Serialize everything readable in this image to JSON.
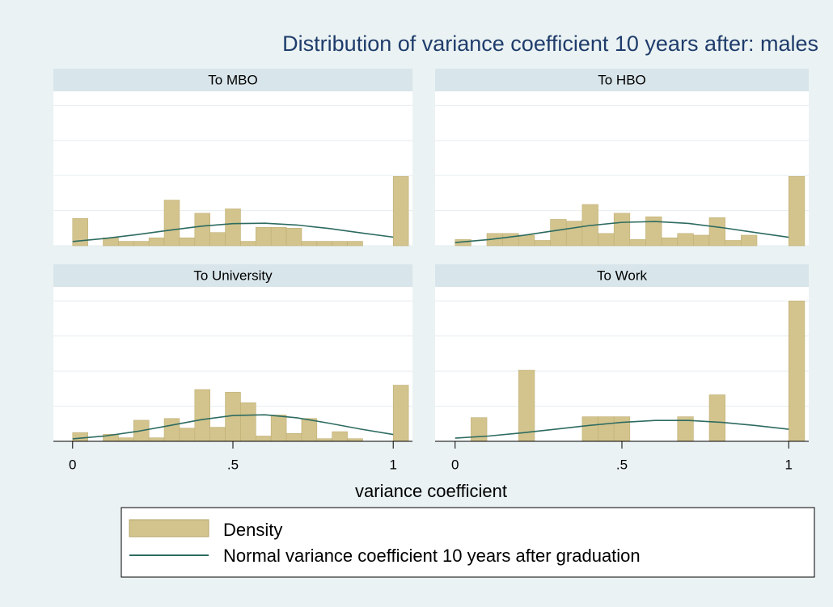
{
  "title": "Distribution of variance coefficient 10 years after: males",
  "xlabel": "variance coefficient",
  "legend": [
    {
      "name": "Density",
      "color": "#d3c48e"
    },
    {
      "name": "Normal variance coefficient 10 years after graduation",
      "color": "#2d6b60"
    }
  ],
  "chart_data": [
    {
      "type": "histogram",
      "title": "To MBO",
      "bins": [
        0,
        0.0476,
        0.0952,
        0.1429,
        0.1905,
        0.2381,
        0.2857,
        0.3333,
        0.381,
        0.4286,
        0.4762,
        0.5238,
        0.5714,
        0.619,
        0.6667,
        0.7143,
        0.7619,
        0.8095,
        0.8571,
        0.9048,
        0.9524,
        1,
        1.0476
      ],
      "counts": [
        1.55,
        0,
        0.45,
        0.25,
        0.25,
        0.45,
        2.6,
        0.45,
        1.85,
        0.75,
        2.1,
        0.25,
        1.05,
        1.05,
        1.0,
        0.25,
        0.25,
        0.25,
        0.25,
        0,
        0,
        3.95
      ],
      "curve": {
        "x": [
          0,
          0.1,
          0.2,
          0.3,
          0.4,
          0.5,
          0.6,
          0.7,
          0.8,
          0.9,
          1
        ],
        "values": [
          0.24,
          0.41,
          0.63,
          0.88,
          1.11,
          1.26,
          1.28,
          1.18,
          0.98,
          0.73,
          0.49
        ]
      },
      "xlim": [
        -0.06,
        1.06
      ],
      "xticks": [
        0,
        {
          "value": 0.5,
          "label": ".5"
        },
        1
      ],
      "ylim": [
        0,
        8.8
      ],
      "yticks": [
        0,
        2,
        4,
        6,
        8
      ],
      "grid": true
    },
    {
      "type": "histogram",
      "title": "To HBO",
      "bins": [
        0,
        0.0476,
        0.0952,
        0.1429,
        0.1905,
        0.2381,
        0.2857,
        0.3333,
        0.381,
        0.4286,
        0.4762,
        0.5238,
        0.5714,
        0.619,
        0.6667,
        0.7143,
        0.7619,
        0.8095,
        0.8571,
        0.9048,
        0.9524,
        1,
        1.0476
      ],
      "counts": [
        0.35,
        0,
        0.7,
        0.7,
        0.6,
        0.3,
        1.5,
        1.4,
        2.35,
        0.7,
        1.85,
        0.35,
        1.65,
        0.45,
        0.7,
        0.6,
        1.6,
        0.3,
        0.6,
        0,
        0,
        3.95
      ],
      "curve": {
        "x": [
          0,
          0.1,
          0.2,
          0.3,
          0.4,
          0.5,
          0.6,
          0.7,
          0.8,
          0.9,
          1
        ],
        "values": [
          0.18,
          0.35,
          0.58,
          0.86,
          1.14,
          1.33,
          1.38,
          1.27,
          1.03,
          0.75,
          0.48
        ]
      },
      "xlim": [
        -0.06,
        1.06
      ],
      "xticks": [
        0,
        {
          "value": 0.5,
          "label": ".5"
        },
        1
      ],
      "ylim": [
        0,
        8.8
      ],
      "yticks": [
        0,
        2,
        4,
        6,
        8
      ],
      "grid": true
    },
    {
      "type": "histogram",
      "title": "To University",
      "bins": [
        0,
        0.0476,
        0.0952,
        0.1429,
        0.1905,
        0.2381,
        0.2857,
        0.3333,
        0.381,
        0.4286,
        0.4762,
        0.5238,
        0.5714,
        0.619,
        0.6667,
        0.7143,
        0.7619,
        0.8095,
        0.8571,
        0.9048,
        0.9524,
        1,
        1.0476
      ],
      "counts": [
        0.5,
        0,
        0.4,
        0.2,
        1.2,
        0.2,
        1.3,
        0.75,
        2.95,
        0.8,
        2.8,
        2.2,
        0.3,
        1.5,
        0.45,
        1.3,
        0.15,
        0.55,
        0.15,
        0,
        0,
        3.2
      ],
      "curve": {
        "x": [
          0,
          0.1,
          0.2,
          0.3,
          0.4,
          0.5,
          0.6,
          0.7,
          0.8,
          0.9,
          1
        ],
        "values": [
          0.14,
          0.3,
          0.56,
          0.89,
          1.23,
          1.47,
          1.51,
          1.34,
          1.03,
          0.69,
          0.39
        ]
      },
      "xlim": [
        -0.06,
        1.06
      ],
      "xticks": [
        0,
        {
          "value": 0.5,
          "label": ".5"
        },
        1
      ],
      "ylim": [
        0,
        8.8
      ],
      "yticks": [
        0,
        2,
        4,
        6,
        8
      ],
      "grid": true
    },
    {
      "type": "histogram",
      "title": "To Work",
      "bins": [
        0,
        0.0476,
        0.0952,
        0.1429,
        0.1905,
        0.2381,
        0.2857,
        0.3333,
        0.381,
        0.4286,
        0.4762,
        0.5238,
        0.5714,
        0.619,
        0.6667,
        0.7143,
        0.7619,
        0.8095,
        0.8571,
        0.9048,
        0.9524,
        1,
        1.0476
      ],
      "counts": [
        0,
        1.35,
        0,
        0,
        4.05,
        0,
        0,
        0,
        1.4,
        1.4,
        1.4,
        0,
        0,
        0,
        1.4,
        0,
        2.65,
        0,
        0,
        0,
        0,
        8.0
      ],
      "curve": {
        "x": [
          0,
          0.1,
          0.2,
          0.3,
          0.4,
          0.5,
          0.6,
          0.7,
          0.8,
          0.9,
          1
        ],
        "values": [
          0.18,
          0.3,
          0.48,
          0.69,
          0.9,
          1.08,
          1.19,
          1.19,
          1.08,
          0.9,
          0.69
        ]
      },
      "xlim": [
        -0.06,
        1.06
      ],
      "xticks": [
        0,
        {
          "value": 0.5,
          "label": ".5"
        },
        1
      ],
      "ylim": [
        0,
        8.8
      ],
      "yticks": [
        0,
        2,
        4,
        6,
        8
      ],
      "grid": true
    }
  ]
}
